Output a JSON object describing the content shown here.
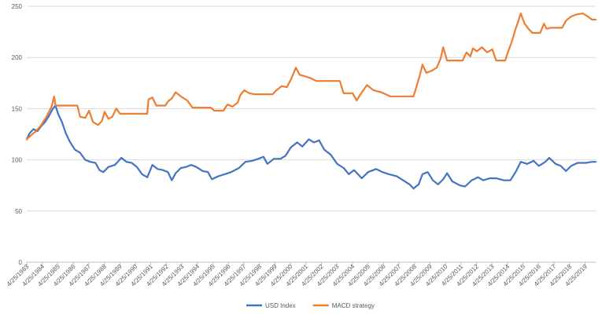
{
  "chart_data": {
    "type": "line",
    "title": "",
    "xlabel": "",
    "ylabel": "",
    "ylim": [
      0,
      250
    ],
    "yticks": [
      0,
      50,
      100,
      150,
      200,
      250
    ],
    "grid": "horizontal",
    "legend_position": "bottom",
    "x_tick_labels": [
      "4/25/1983",
      "4/25/1984",
      "4/25/1985",
      "4/25/1986",
      "4/25/1987",
      "4/25/1988",
      "4/25/1989",
      "4/25/1990",
      "4/25/1991",
      "4/25/1992",
      "4/25/1993",
      "4/25/1994",
      "4/25/1995",
      "4/25/1996",
      "4/25/1997",
      "4/25/1998",
      "4/25/1999",
      "4/25/2000",
      "4/25/2001",
      "4/25/2002",
      "4/25/2003",
      "4/25/2004",
      "4/25/2005",
      "4/25/2006",
      "4/25/2007",
      "4/25/2008",
      "4/25/2009",
      "4/25/2010",
      "4/25/2011",
      "4/25/2012",
      "4/25/2013",
      "4/25/2014",
      "4/25/2015",
      "4/25/2016",
      "4/25/2017",
      "4/25/2018",
      "4/25/2019"
    ],
    "series": [
      {
        "name": "USD Index",
        "color": "#4472c4",
        "points": [
          [
            "1983-04-25",
            120
          ],
          [
            "1983-07-01",
            126
          ],
          [
            "1983-10-01",
            130
          ],
          [
            "1984-01-01",
            128
          ],
          [
            "1984-04-01",
            133
          ],
          [
            "1984-07-01",
            137
          ],
          [
            "1984-10-01",
            143
          ],
          [
            "1985-01-01",
            150
          ],
          [
            "1985-03-01",
            153
          ],
          [
            "1985-05-01",
            145
          ],
          [
            "1985-08-01",
            137
          ],
          [
            "1985-11-01",
            126
          ],
          [
            "1986-02-01",
            118
          ],
          [
            "1986-06-01",
            110
          ],
          [
            "1986-10-01",
            107
          ],
          [
            "1987-02-01",
            100
          ],
          [
            "1987-06-01",
            98
          ],
          [
            "1987-10-01",
            97
          ],
          [
            "1988-01-01",
            90
          ],
          [
            "1988-04-01",
            88
          ],
          [
            "1988-08-01",
            93
          ],
          [
            "1989-01-01",
            95
          ],
          [
            "1989-06-01",
            102
          ],
          [
            "1989-10-01",
            98
          ],
          [
            "1990-02-01",
            97
          ],
          [
            "1990-06-01",
            93
          ],
          [
            "1990-10-01",
            86
          ],
          [
            "1991-02-01",
            83
          ],
          [
            "1991-06-01",
            95
          ],
          [
            "1991-10-01",
            91
          ],
          [
            "1992-02-01",
            90
          ],
          [
            "1992-06-01",
            88
          ],
          [
            "1992-09-01",
            80
          ],
          [
            "1992-12-01",
            87
          ],
          [
            "1993-04-01",
            92
          ],
          [
            "1993-08-01",
            93
          ],
          [
            "1993-12-01",
            95
          ],
          [
            "1994-04-01",
            93
          ],
          [
            "1994-09-01",
            89
          ],
          [
            "1995-01-01",
            88
          ],
          [
            "1995-04-01",
            81
          ],
          [
            "1995-09-01",
            84
          ],
          [
            "1996-02-01",
            86
          ],
          [
            "1996-07-01",
            88
          ],
          [
            "1997-01-01",
            92
          ],
          [
            "1997-06-01",
            98
          ],
          [
            "1997-11-01",
            99
          ],
          [
            "1998-04-01",
            101
          ],
          [
            "1998-08-01",
            103
          ],
          [
            "1998-11-01",
            96
          ],
          [
            "1999-04-01",
            101
          ],
          [
            "1999-09-01",
            101
          ],
          [
            "2000-01-01",
            104
          ],
          [
            "2000-05-01",
            112
          ],
          [
            "2000-10-01",
            117
          ],
          [
            "2001-02-01",
            113
          ],
          [
            "2001-07-01",
            120
          ],
          [
            "2001-11-01",
            117
          ],
          [
            "2002-03-01",
            119
          ],
          [
            "2002-07-01",
            110
          ],
          [
            "2002-12-01",
            105
          ],
          [
            "2003-05-01",
            96
          ],
          [
            "2003-10-01",
            92
          ],
          [
            "2004-02-01",
            86
          ],
          [
            "2004-06-01",
            90
          ],
          [
            "2004-12-01",
            82
          ],
          [
            "2005-05-01",
            88
          ],
          [
            "2005-11-01",
            91
          ],
          [
            "2006-04-01",
            88
          ],
          [
            "2006-09-01",
            86
          ],
          [
            "2007-03-01",
            84
          ],
          [
            "2007-08-01",
            80
          ],
          [
            "2008-01-01",
            76
          ],
          [
            "2008-04-01",
            72
          ],
          [
            "2008-08-01",
            76
          ],
          [
            "2008-11-01",
            86
          ],
          [
            "2009-03-01",
            88
          ],
          [
            "2009-07-01",
            80
          ],
          [
            "2009-11-01",
            76
          ],
          [
            "2010-03-01",
            81
          ],
          [
            "2010-06-01",
            87
          ],
          [
            "2010-10-01",
            79
          ],
          [
            "2011-04-01",
            75
          ],
          [
            "2011-08-01",
            74
          ],
          [
            "2012-01-01",
            80
          ],
          [
            "2012-06-01",
            83
          ],
          [
            "2012-10-01",
            80
          ],
          [
            "2013-03-01",
            82
          ],
          [
            "2013-08-01",
            82
          ],
          [
            "2014-02-01",
            80
          ],
          [
            "2014-07-01",
            80
          ],
          [
            "2014-11-01",
            88
          ],
          [
            "2015-03-01",
            98
          ],
          [
            "2015-08-01",
            96
          ],
          [
            "2016-01-01",
            99
          ],
          [
            "2016-05-01",
            94
          ],
          [
            "2016-10-01",
            98
          ],
          [
            "2017-01-01",
            102
          ],
          [
            "2017-06-01",
            96
          ],
          [
            "2017-10-01",
            94
          ],
          [
            "2018-02-01",
            89
          ],
          [
            "2018-06-01",
            94
          ],
          [
            "2018-11-01",
            97
          ],
          [
            "2019-05-01",
            97
          ],
          [
            "2019-10-01",
            98
          ],
          [
            "2020-01-01",
            98
          ]
        ]
      },
      {
        "name": "MACD strategy",
        "color": "#ed7d31",
        "points": [
          [
            "1983-04-25",
            120
          ],
          [
            "1983-08-01",
            124
          ],
          [
            "1983-12-01",
            128
          ],
          [
            "1984-04-01",
            134
          ],
          [
            "1984-08-01",
            142
          ],
          [
            "1984-12-01",
            152
          ],
          [
            "1985-02-01",
            162
          ],
          [
            "1985-03-01",
            153
          ],
          [
            "1986-08-01",
            153
          ],
          [
            "1986-10-01",
            142
          ],
          [
            "1987-02-01",
            141
          ],
          [
            "1987-05-01",
            148
          ],
          [
            "1987-08-01",
            137
          ],
          [
            "1987-12-01",
            134
          ],
          [
            "1988-03-01",
            138
          ],
          [
            "1988-05-01",
            147
          ],
          [
            "1988-08-01",
            140
          ],
          [
            "1988-11-01",
            142
          ],
          [
            "1989-02-01",
            150
          ],
          [
            "1989-05-01",
            145
          ],
          [
            "1991-02-01",
            145
          ],
          [
            "1991-03-01",
            159
          ],
          [
            "1991-06-01",
            161
          ],
          [
            "1991-09-01",
            153
          ],
          [
            "1992-04-01",
            153
          ],
          [
            "1992-06-01",
            157
          ],
          [
            "1992-09-01",
            160
          ],
          [
            "1992-12-01",
            166
          ],
          [
            "1993-04-01",
            162
          ],
          [
            "1993-09-01",
            158
          ],
          [
            "1994-01-01",
            151
          ],
          [
            "1995-03-01",
            151
          ],
          [
            "1995-06-01",
            148
          ],
          [
            "1996-01-01",
            148
          ],
          [
            "1996-04-01",
            154
          ],
          [
            "1996-08-01",
            152
          ],
          [
            "1996-12-01",
            156
          ],
          [
            "1997-02-01",
            163
          ],
          [
            "1997-05-01",
            168
          ],
          [
            "1997-09-01",
            165
          ],
          [
            "1998-01-01",
            164
          ],
          [
            "1999-03-01",
            164
          ],
          [
            "1999-06-01",
            168
          ],
          [
            "1999-10-01",
            172
          ],
          [
            "2000-02-01",
            171
          ],
          [
            "2000-05-01",
            178
          ],
          [
            "2000-09-01",
            190
          ],
          [
            "2000-12-01",
            183
          ],
          [
            "2001-03-01",
            182
          ],
          [
            "2001-08-01",
            180
          ],
          [
            "2002-01-01",
            177
          ],
          [
            "2003-07-01",
            177
          ],
          [
            "2003-10-01",
            165
          ],
          [
            "2004-05-01",
            165
          ],
          [
            "2004-08-01",
            158
          ],
          [
            "2004-11-01",
            164
          ],
          [
            "2005-04-01",
            173
          ],
          [
            "2005-09-01",
            168
          ],
          [
            "2006-03-01",
            166
          ],
          [
            "2006-10-01",
            162
          ],
          [
            "2008-04-01",
            162
          ],
          [
            "2008-06-01",
            170
          ],
          [
            "2008-09-01",
            183
          ],
          [
            "2008-11-01",
            193
          ],
          [
            "2009-02-01",
            185
          ],
          [
            "2009-06-01",
            187
          ],
          [
            "2009-10-01",
            190
          ],
          [
            "2010-01-01",
            199
          ],
          [
            "2010-03-01",
            210
          ],
          [
            "2010-06-01",
            197
          ],
          [
            "2011-06-01",
            197
          ],
          [
            "2011-09-01",
            205
          ],
          [
            "2011-12-01",
            201
          ],
          [
            "2012-02-01",
            209
          ],
          [
            "2012-05-01",
            206
          ],
          [
            "2012-09-01",
            210
          ],
          [
            "2013-01-01",
            205
          ],
          [
            "2013-05-01",
            208
          ],
          [
            "2013-08-01",
            197
          ],
          [
            "2014-03-01",
            197
          ],
          [
            "2014-05-01",
            205
          ],
          [
            "2014-08-01",
            215
          ],
          [
            "2014-11-01",
            228
          ],
          [
            "2015-01-01",
            235
          ],
          [
            "2015-03-01",
            243
          ],
          [
            "2015-06-01",
            233
          ],
          [
            "2015-09-01",
            228
          ],
          [
            "2015-12-01",
            224
          ],
          [
            "2016-06-01",
            224
          ],
          [
            "2016-09-01",
            233
          ],
          [
            "2016-11-01",
            228
          ],
          [
            "2017-02-01",
            229
          ],
          [
            "2017-11-01",
            229
          ],
          [
            "2018-02-01",
            236
          ],
          [
            "2018-06-01",
            240
          ],
          [
            "2018-10-01",
            242
          ],
          [
            "2019-03-01",
            243
          ],
          [
            "2019-07-01",
            240
          ],
          [
            "2019-10-01",
            237
          ],
          [
            "2020-01-01",
            237
          ]
        ]
      }
    ]
  }
}
